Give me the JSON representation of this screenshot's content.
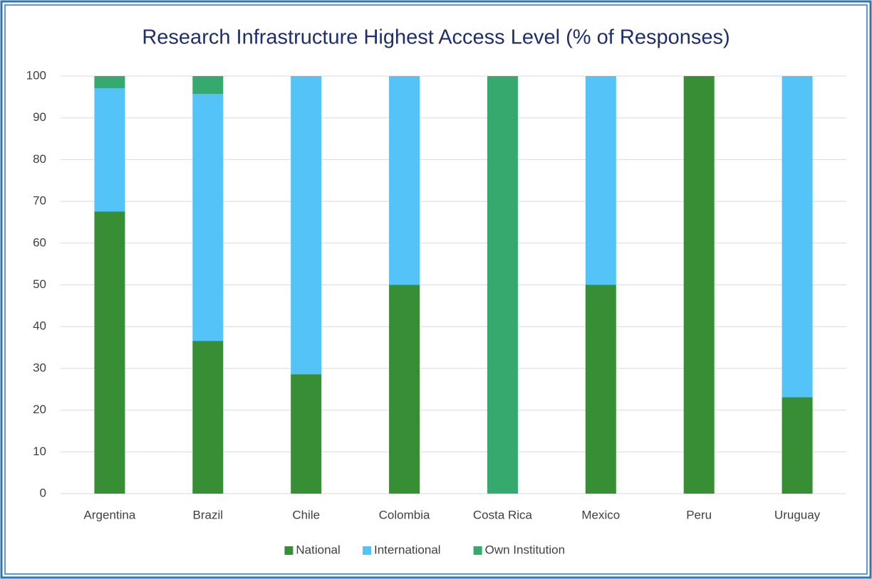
{
  "chart_data": {
    "type": "stacked_bar",
    "title": "Research Infrastructure Highest Access Level (% of Responses)",
    "categories": [
      "Argentina",
      "Brazil",
      "Chile",
      "Colombia",
      "Costa Rica",
      "Mexico",
      "Peru",
      "Uruguay"
    ],
    "series": [
      {
        "name": "National",
        "color": "#388e35",
        "values": [
          67.6,
          36.6,
          28.6,
          50,
          0,
          50,
          100,
          23.1
        ]
      },
      {
        "name": "International",
        "color": "#54c3f8",
        "values": [
          29.5,
          59.1,
          71.4,
          50,
          0,
          50,
          0,
          76.9
        ]
      },
      {
        "name": "Own Institution",
        "color": "#36a96f",
        "values": [
          2.9,
          4.3,
          0,
          0,
          100,
          0,
          0,
          0
        ]
      }
    ],
    "ylim": [
      0,
      100
    ],
    "yticks": [
      0,
      10,
      20,
      30,
      40,
      50,
      60,
      70,
      80,
      90,
      100
    ],
    "grid": true,
    "legend": "bottom"
  }
}
